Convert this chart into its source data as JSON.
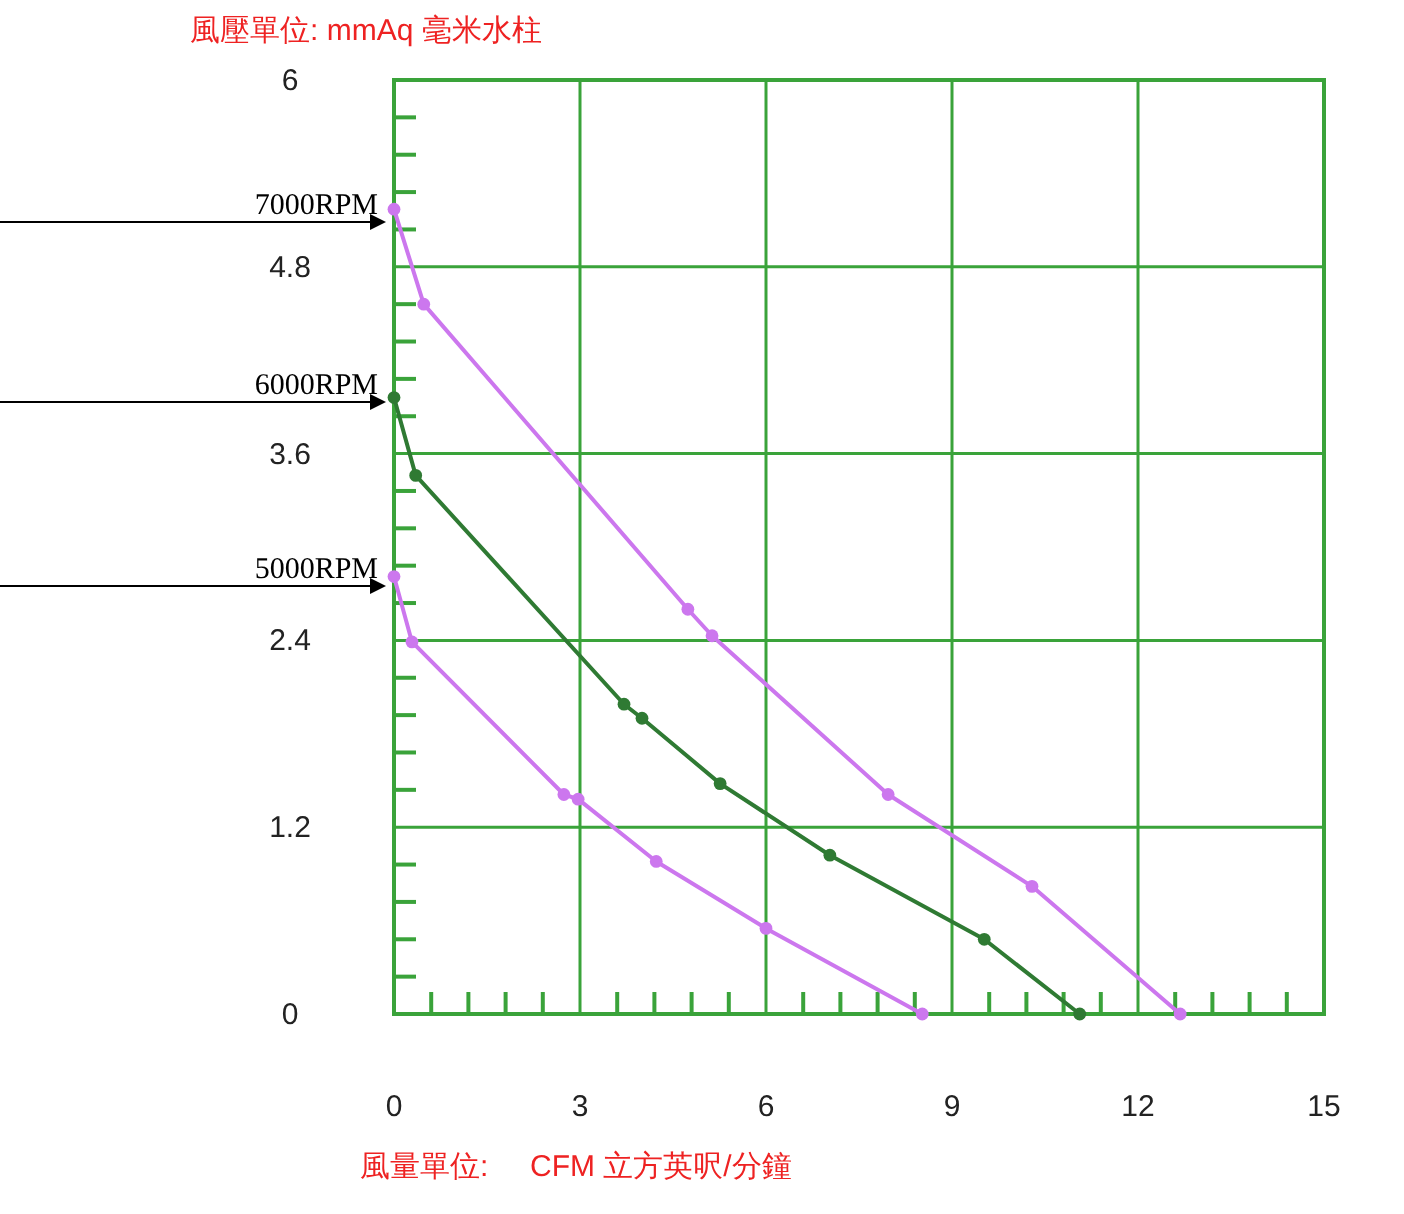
{
  "chart_data": {
    "type": "line",
    "xlabel": "風量單位:     CFM 立方英呎/分鐘",
    "ylabel": "風壓單位:  mmAq 毫米水柱",
    "xlim": [
      0,
      15
    ],
    "ylim": [
      0,
      6
    ],
    "xticks": [
      0,
      {
        "value": 0.6,
        "label": null
      },
      {
        "value": 1.2,
        "label": null
      },
      {
        "value": 1.8,
        "label": null
      },
      {
        "value": 2.4,
        "label": null
      },
      3,
      {
        "value": 3.6,
        "label": null
      },
      {
        "value": 4.2,
        "label": null
      },
      {
        "value": 4.8,
        "label": null
      },
      {
        "value": 5.4,
        "label": null
      },
      6,
      {
        "value": 6.6,
        "label": null
      },
      {
        "value": 7.2,
        "label": null
      },
      {
        "value": 7.8,
        "label": null
      },
      {
        "value": 8.4,
        "label": null
      },
      9,
      {
        "value": 9.6,
        "label": null
      },
      {
        "value": 10.2,
        "label": null
      },
      {
        "value": 10.8,
        "label": null
      },
      {
        "value": 11.4,
        "label": null
      },
      12,
      {
        "value": 12.6,
        "label": null
      },
      {
        "value": 13.2,
        "label": null
      },
      {
        "value": 13.8,
        "label": null
      },
      {
        "value": 14.4,
        "label": null
      },
      15
    ],
    "yticks": [
      0,
      {
        "value": 0.24,
        "label": null
      },
      {
        "value": 0.48,
        "label": null
      },
      {
        "value": 0.72,
        "label": null
      },
      {
        "value": 0.96,
        "label": null
      },
      1.2,
      {
        "value": 1.44,
        "label": null
      },
      {
        "value": 1.68,
        "label": null
      },
      {
        "value": 1.92,
        "label": null
      },
      {
        "value": 2.16,
        "label": null
      },
      2.4,
      {
        "value": 2.64,
        "label": null
      },
      {
        "value": 2.88,
        "label": null
      },
      {
        "value": 3.12,
        "label": null
      },
      {
        "value": 3.36,
        "label": null
      },
      3.6,
      {
        "value": 3.84,
        "label": null
      },
      {
        "value": 4.08,
        "label": null
      },
      {
        "value": 4.32,
        "label": null
      },
      {
        "value": 4.56,
        "label": null
      },
      4.8,
      {
        "value": 5.04,
        "label": null
      },
      {
        "value": 5.28,
        "label": null
      },
      {
        "value": 5.52,
        "label": null
      },
      {
        "value": 5.76,
        "label": null
      },
      6
    ],
    "grid": true,
    "legend": false,
    "marker": "circle",
    "series": [
      {
        "name": "7000RPM",
        "color": "#cc77ee",
        "x": [
          0,
          0.48,
          4.74,
          5.13,
          7.97,
          10.29,
          12.68
        ],
        "values": [
          5.17,
          4.56,
          2.6,
          2.43,
          1.41,
          0.82,
          0
        ]
      },
      {
        "name": "6000RPM",
        "color": "#2f7a33",
        "x": [
          0,
          0.35,
          3.71,
          4.0,
          5.26,
          7.03,
          9.52,
          11.06
        ],
        "values": [
          3.96,
          3.46,
          1.99,
          1.9,
          1.48,
          1.02,
          0.48,
          0
        ]
      },
      {
        "name": "5000RPM",
        "color": "#cc77ee",
        "x": [
          0,
          0.29,
          2.74,
          2.97,
          4.23,
          6.0,
          8.52
        ],
        "values": [
          2.81,
          2.39,
          1.41,
          1.38,
          0.98,
          0.55,
          0
        ]
      }
    ]
  }
}
